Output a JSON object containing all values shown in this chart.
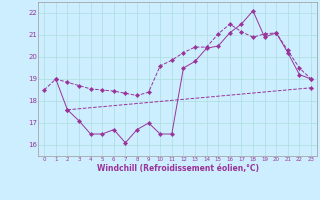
{
  "xlabel": "Windchill (Refroidissement éolien,°C)",
  "background_color": "#cceeff",
  "line_color": "#993399",
  "grid_color": "#aadddd",
  "xlim": [
    -0.5,
    23.5
  ],
  "ylim": [
    15.5,
    22.5
  ],
  "xticks": [
    0,
    1,
    2,
    3,
    4,
    5,
    6,
    7,
    8,
    9,
    10,
    11,
    12,
    13,
    14,
    15,
    16,
    17,
    18,
    19,
    20,
    21,
    22,
    23
  ],
  "yticks": [
    16,
    17,
    18,
    19,
    20,
    21,
    22
  ],
  "line1_x": [
    0,
    1,
    2,
    3,
    4,
    5,
    6,
    7,
    8,
    9,
    10,
    11,
    12,
    13,
    14,
    15,
    16,
    17,
    18,
    19,
    20,
    21,
    22,
    23
  ],
  "line1_y": [
    18.5,
    19.0,
    18.85,
    18.7,
    18.55,
    18.5,
    18.45,
    18.35,
    18.25,
    18.4,
    19.6,
    19.85,
    20.2,
    20.45,
    20.45,
    21.05,
    21.5,
    21.15,
    20.9,
    21.05,
    21.1,
    20.3,
    19.5,
    19.0
  ],
  "line2_x": [
    1,
    2,
    3,
    4,
    5,
    6,
    7,
    8,
    9,
    10,
    11,
    12,
    13,
    14,
    15,
    16,
    17,
    18,
    19,
    20,
    21,
    22,
    23
  ],
  "line2_y": [
    19.0,
    17.6,
    17.1,
    16.5,
    16.5,
    16.7,
    16.1,
    16.7,
    17.0,
    16.5,
    16.5,
    19.5,
    19.8,
    20.4,
    20.5,
    21.1,
    21.5,
    22.1,
    20.9,
    21.1,
    20.2,
    19.2,
    19.0
  ],
  "line3_x": [
    2,
    23
  ],
  "line3_y": [
    17.6,
    18.6
  ]
}
